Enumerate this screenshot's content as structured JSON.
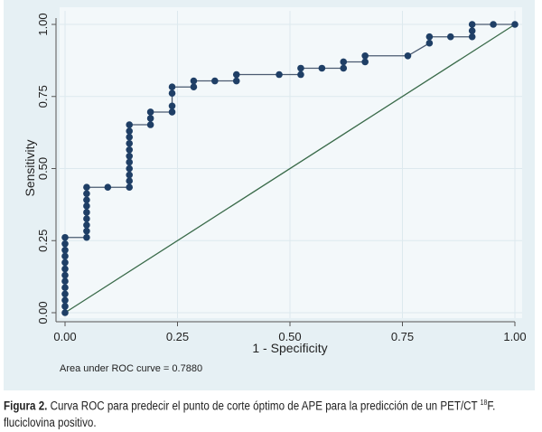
{
  "chart_data": {
    "type": "line",
    "xlabel": "1 - Specificity",
    "ylabel": "Sensitivity",
    "xlim": [
      0,
      1
    ],
    "ylim": [
      0,
      1
    ],
    "xticks": [
      "0.00",
      "0.25",
      "0.50",
      "0.75",
      "1.00"
    ],
    "yticks": [
      "0.00",
      "0.25",
      "0.50",
      "0.75",
      "1.00"
    ],
    "grid": true,
    "annotation": "Area under ROC curve = 0.7880",
    "series": [
      {
        "points": [
          [
            0,
            0
          ],
          [
            0,
            0.022
          ],
          [
            0,
            0.043
          ],
          [
            0,
            0.065
          ],
          [
            0,
            0.087
          ],
          [
            0,
            0.109
          ],
          [
            0,
            0.13
          ],
          [
            0,
            0.152
          ],
          [
            0,
            0.174
          ],
          [
            0,
            0.196
          ],
          [
            0,
            0.217
          ],
          [
            0,
            0.239
          ],
          [
            0,
            0.261
          ],
          [
            0.048,
            0.261
          ],
          [
            0.048,
            0.283
          ],
          [
            0.048,
            0.304
          ],
          [
            0.048,
            0.326
          ],
          [
            0.048,
            0.348
          ],
          [
            0.048,
            0.37
          ],
          [
            0.048,
            0.391
          ],
          [
            0.048,
            0.413
          ],
          [
            0.048,
            0.435
          ],
          [
            0.095,
            0.435
          ],
          [
            0.143,
            0.435
          ],
          [
            0.143,
            0.457
          ],
          [
            0.143,
            0.478
          ],
          [
            0.143,
            0.5
          ],
          [
            0.143,
            0.522
          ],
          [
            0.143,
            0.543
          ],
          [
            0.143,
            0.565
          ],
          [
            0.143,
            0.587
          ],
          [
            0.143,
            0.609
          ],
          [
            0.143,
            0.63
          ],
          [
            0.143,
            0.652
          ],
          [
            0.19,
            0.652
          ],
          [
            0.19,
            0.674
          ],
          [
            0.19,
            0.696
          ],
          [
            0.238,
            0.696
          ],
          [
            0.238,
            0.717
          ],
          [
            0.238,
            0.761
          ],
          [
            0.238,
            0.783
          ],
          [
            0.286,
            0.783
          ],
          [
            0.286,
            0.804
          ],
          [
            0.333,
            0.804
          ],
          [
            0.381,
            0.804
          ],
          [
            0.381,
            0.826
          ],
          [
            0.476,
            0.826
          ],
          [
            0.524,
            0.826
          ],
          [
            0.524,
            0.848
          ],
          [
            0.571,
            0.848
          ],
          [
            0.619,
            0.848
          ],
          [
            0.619,
            0.87
          ],
          [
            0.667,
            0.87
          ],
          [
            0.667,
            0.891
          ],
          [
            0.762,
            0.891
          ],
          [
            0.81,
            0.935
          ],
          [
            0.81,
            0.957
          ],
          [
            0.857,
            0.957
          ],
          [
            0.905,
            0.957
          ],
          [
            0.905,
            0.978
          ],
          [
            0.905,
            1.0
          ],
          [
            0.952,
            1.0
          ],
          [
            1.0,
            1.0
          ]
        ],
        "color": "#1f3f66"
      },
      {
        "points": [
          [
            0,
            0
          ],
          [
            1,
            1
          ]
        ],
        "color": "#3a6b4a"
      }
    ]
  },
  "caption": {
    "label": "Figura 2.",
    "text": " Curva ROC para predecir el punto de corte óptimo de APE para la predicción de un PET/CT ",
    "superscript": "18",
    "text_after": "F.",
    "line2": "fluciclovina positivo."
  },
  "colors": {
    "panel": "#e6f0f4",
    "plot": "#f3f8fa",
    "grid": "#dde9ee"
  }
}
